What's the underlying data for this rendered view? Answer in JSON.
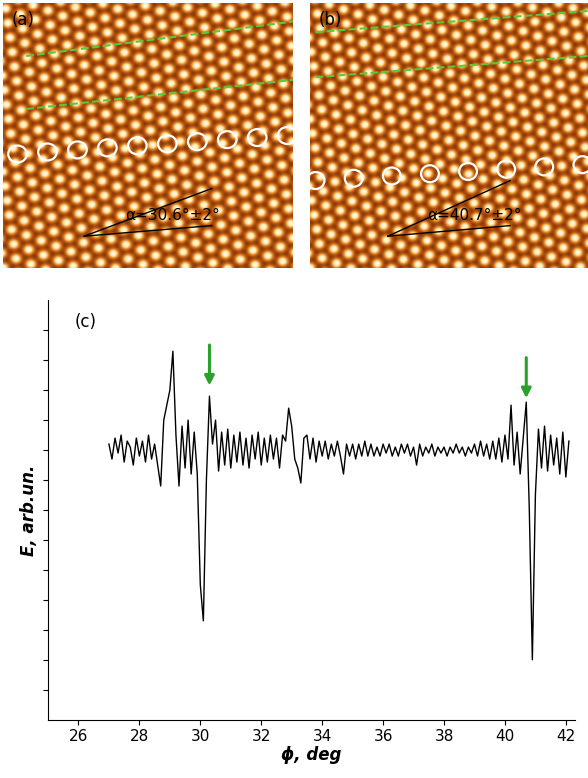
{
  "panels": [
    {
      "label": "(a)",
      "annotation": "α=30.6°±2°"
    },
    {
      "label": "(b)",
      "annotation": "α=40.7°±2°"
    }
  ],
  "chart_data": {
    "type": "line",
    "label": "(c)",
    "x_label": "ϕ, deg",
    "y_label": "E, arb.un.",
    "x": [
      27.0,
      27.1,
      27.2,
      27.3,
      27.4,
      27.5,
      27.6,
      27.7,
      27.8,
      27.9,
      28.0,
      28.1,
      28.2,
      28.3,
      28.4,
      28.5,
      28.6,
      28.7,
      28.8,
      28.9,
      29.0,
      29.1,
      29.2,
      29.3,
      29.4,
      29.5,
      29.6,
      29.7,
      29.8,
      29.9,
      30.0,
      30.1,
      30.2,
      30.3,
      30.4,
      30.5,
      30.6,
      30.7,
      30.8,
      30.9,
      31.0,
      31.1,
      31.2,
      31.3,
      31.4,
      31.5,
      31.6,
      31.7,
      31.8,
      31.9,
      32.0,
      32.1,
      32.2,
      32.3,
      32.4,
      32.5,
      32.6,
      32.7,
      32.8,
      32.9,
      33.0,
      33.1,
      33.2,
      33.3,
      33.4,
      33.5,
      33.6,
      33.7,
      33.8,
      33.9,
      34.0,
      34.1,
      34.2,
      34.3,
      34.4,
      34.5,
      34.6,
      34.7,
      34.8,
      34.9,
      35.0,
      35.1,
      35.2,
      35.3,
      35.4,
      35.5,
      35.6,
      35.7,
      35.8,
      35.9,
      36.0,
      36.1,
      36.2,
      36.3,
      36.4,
      36.5,
      36.6,
      36.7,
      36.8,
      36.9,
      37.0,
      37.1,
      37.2,
      37.3,
      37.4,
      37.5,
      37.6,
      37.7,
      37.8,
      37.9,
      38.0,
      38.1,
      38.2,
      38.3,
      38.4,
      38.5,
      38.6,
      38.7,
      38.8,
      38.9,
      39.0,
      39.1,
      39.2,
      39.3,
      39.4,
      39.5,
      39.6,
      39.7,
      39.8,
      39.9,
      40.0,
      40.1,
      40.2,
      40.3,
      40.4,
      40.5,
      40.6,
      40.7,
      40.8,
      40.9,
      41.0,
      41.1,
      41.2,
      41.3,
      41.4,
      41.5,
      41.6,
      41.7,
      41.8,
      41.9,
      42.0,
      42.1
    ],
    "values": [
      0.2,
      -0.3,
      0.4,
      -0.1,
      0.5,
      -0.4,
      0.3,
      0.1,
      -0.5,
      0.4,
      -0.2,
      0.3,
      -0.4,
      0.5,
      -0.3,
      0.2,
      -0.5,
      -1.2,
      1.0,
      1.5,
      2.0,
      3.3,
      0.5,
      -1.2,
      0.8,
      -0.6,
      1.0,
      -0.8,
      0.6,
      -0.8,
      -4.5,
      -5.7,
      -1.0,
      1.8,
      0.2,
      1.0,
      -0.7,
      0.6,
      -0.5,
      0.7,
      -0.6,
      0.5,
      -0.4,
      0.6,
      -0.5,
      0.4,
      -0.6,
      0.5,
      -0.3,
      0.6,
      -0.5,
      0.4,
      -0.4,
      0.5,
      -0.3,
      0.4,
      -0.6,
      0.5,
      0.3,
      1.4,
      0.8,
      -0.3,
      -0.6,
      -1.1,
      0.4,
      0.5,
      -0.3,
      0.4,
      -0.4,
      0.3,
      -0.2,
      0.3,
      -0.3,
      0.2,
      -0.2,
      0.3,
      -0.2,
      -0.8,
      0.2,
      -0.2,
      0.2,
      -0.3,
      0.2,
      -0.2,
      0.3,
      -0.2,
      0.2,
      -0.2,
      0.1,
      -0.2,
      0.2,
      -0.1,
      0.2,
      -0.2,
      0.1,
      -0.2,
      0.2,
      -0.1,
      0.2,
      -0.2,
      0.1,
      -0.5,
      0.2,
      -0.2,
      0.1,
      -0.1,
      0.2,
      -0.2,
      0.1,
      -0.1,
      0.1,
      -0.2,
      0.1,
      -0.1,
      0.2,
      -0.1,
      0.1,
      -0.2,
      0.1,
      -0.1,
      0.2,
      -0.2,
      0.3,
      -0.2,
      0.2,
      -0.3,
      0.3,
      -0.3,
      0.4,
      -0.4,
      0.5,
      -0.3,
      1.5,
      -0.5,
      0.6,
      -0.8,
      0.4,
      1.6,
      -2.0,
      -7.0,
      -1.5,
      0.7,
      -0.6,
      0.8,
      -0.7,
      0.5,
      -0.5,
      0.4,
      -0.8,
      0.6,
      -0.9,
      0.3
    ],
    "color": "#000000",
    "xlim": [
      25,
      42.3
    ],
    "xticks": [
      26,
      28,
      30,
      32,
      34,
      36,
      38,
      40,
      42
    ],
    "ylim": [
      -9,
      5
    ],
    "yticks": [
      -8,
      -7,
      -6,
      -5,
      -4,
      -3,
      -2,
      -1,
      0,
      1,
      2,
      3,
      4
    ],
    "tick_labels": "x",
    "arrows": {
      "x": [
        30.3,
        40.7
      ],
      "color": "#2ca02c"
    }
  }
}
